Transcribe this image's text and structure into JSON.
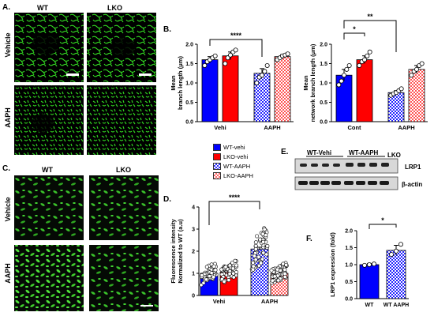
{
  "panels": {
    "A": {
      "letter": "A.",
      "col_wt": "WT",
      "col_lko": "LKO",
      "row_vehicle": "Vehicle",
      "row_aaph": "AAPH"
    },
    "B": {
      "letter": "B."
    },
    "C": {
      "letter": "C.",
      "col_wt": "WT",
      "col_lko": "LKO",
      "row_vehicle": "Vehicle",
      "row_aaph": "AAPH"
    },
    "D": {
      "letter": "D."
    },
    "E": {
      "letter": "E.",
      "lane_wt_vehi": "WT-Vehi",
      "lane_wt_aaph": "WT-AAPH",
      "lane_lko": "LKO",
      "band_lrp1": "LRP1",
      "band_actin": "β-actin"
    },
    "F": {
      "letter": "F."
    }
  },
  "legend": [
    {
      "label": "WT-vehi",
      "color": "#0000ff",
      "pattern": "solid"
    },
    {
      "label": "LKO-vehi",
      "color": "#ff0000",
      "pattern": "solid"
    },
    {
      "label": "WT-AAPH",
      "color": "#3333ff",
      "pattern": "checker"
    },
    {
      "label": "LKO-AAPH",
      "color": "#ff6666",
      "pattern": "checker"
    }
  ],
  "chart_data": [
    {
      "id": "B1",
      "type": "bar",
      "ylabel": "Mean\nbranch length (μm)",
      "ylim": [
        0,
        2.0
      ],
      "yticks": [
        "0.0",
        "0.5",
        "1.0",
        "1.5",
        "2.0"
      ],
      "groups": [
        "Vehi",
        "AAPH"
      ],
      "series": [
        {
          "name": "WT-vehi",
          "value": 1.6,
          "err": 0.08,
          "points": [
            1.45,
            1.55,
            1.6,
            1.65,
            1.7
          ]
        },
        {
          "name": "LKO-vehi",
          "value": 1.7,
          "err": 0.1,
          "points": [
            1.5,
            1.65,
            1.72,
            1.8,
            1.85
          ]
        },
        {
          "name": "WT-AAPH",
          "value": 1.25,
          "err": 0.12,
          "points": [
            1.0,
            1.15,
            1.2,
            1.3,
            1.45
          ]
        },
        {
          "name": "LKO-AAPH",
          "value": 1.68,
          "err": 0.05,
          "points": [
            1.6,
            1.65,
            1.7,
            1.72,
            1.75
          ]
        }
      ],
      "significance": "****"
    },
    {
      "id": "B2",
      "type": "bar",
      "ylabel": "Mean\nnetwork branch length (μm)",
      "ylim": [
        0,
        2.0
      ],
      "yticks": [
        "0.0",
        "0.5",
        "1.0",
        "1.5",
        "2.0"
      ],
      "groups": [
        "Cont",
        "AAPH"
      ],
      "series": [
        {
          "name": "WT-vehi",
          "value": 1.2,
          "err": 0.15,
          "points": [
            0.95,
            1.05,
            1.2,
            1.35,
            1.45
          ]
        },
        {
          "name": "LKO-vehi",
          "value": 1.6,
          "err": 0.1,
          "points": [
            1.45,
            1.55,
            1.6,
            1.7,
            1.8
          ]
        },
        {
          "name": "WT-AAPH",
          "value": 0.75,
          "err": 0.05,
          "points": [
            0.68,
            0.72,
            0.75,
            0.8,
            0.85
          ]
        },
        {
          "name": "LKO-AAPH",
          "value": 1.35,
          "err": 0.1,
          "points": [
            1.2,
            1.3,
            1.35,
            1.45,
            1.5
          ]
        }
      ],
      "significance": [
        "*",
        "**"
      ]
    },
    {
      "id": "D",
      "type": "bar",
      "ylabel": "Fluorescence intensity\nNormalized to WT (a.u)",
      "ylim": [
        0,
        4
      ],
      "yticks": [
        "0",
        "1",
        "2",
        "3",
        "4"
      ],
      "groups": [
        "Vehi",
        "AAPH"
      ],
      "series": [
        {
          "name": "WT-vehi",
          "value": 1.0,
          "err": 0.05
        },
        {
          "name": "LKO-vehi",
          "value": 1.05,
          "err": 0.05
        },
        {
          "name": "WT-AAPH",
          "value": 2.1,
          "err": 0.08
        },
        {
          "name": "LKO-AAPH",
          "value": 1.0,
          "err": 0.05
        }
      ],
      "significance": "****"
    },
    {
      "id": "F",
      "type": "bar",
      "ylabel": "LRP1 expression (fold)",
      "ylim": [
        0,
        2.0
      ],
      "yticks": [
        "0.0",
        "0.5",
        "1.0",
        "1.5",
        "2.0"
      ],
      "categories": [
        "WT",
        "WT AAPH"
      ],
      "series": [
        {
          "name": "WT",
          "value": 1.0,
          "err": 0.03,
          "points": [
            0.98,
            1.0,
            1.02
          ]
        },
        {
          "name": "WT AAPH",
          "value": 1.42,
          "err": 0.15,
          "points": [
            1.3,
            1.4,
            1.6
          ]
        }
      ],
      "significance": "*"
    }
  ]
}
